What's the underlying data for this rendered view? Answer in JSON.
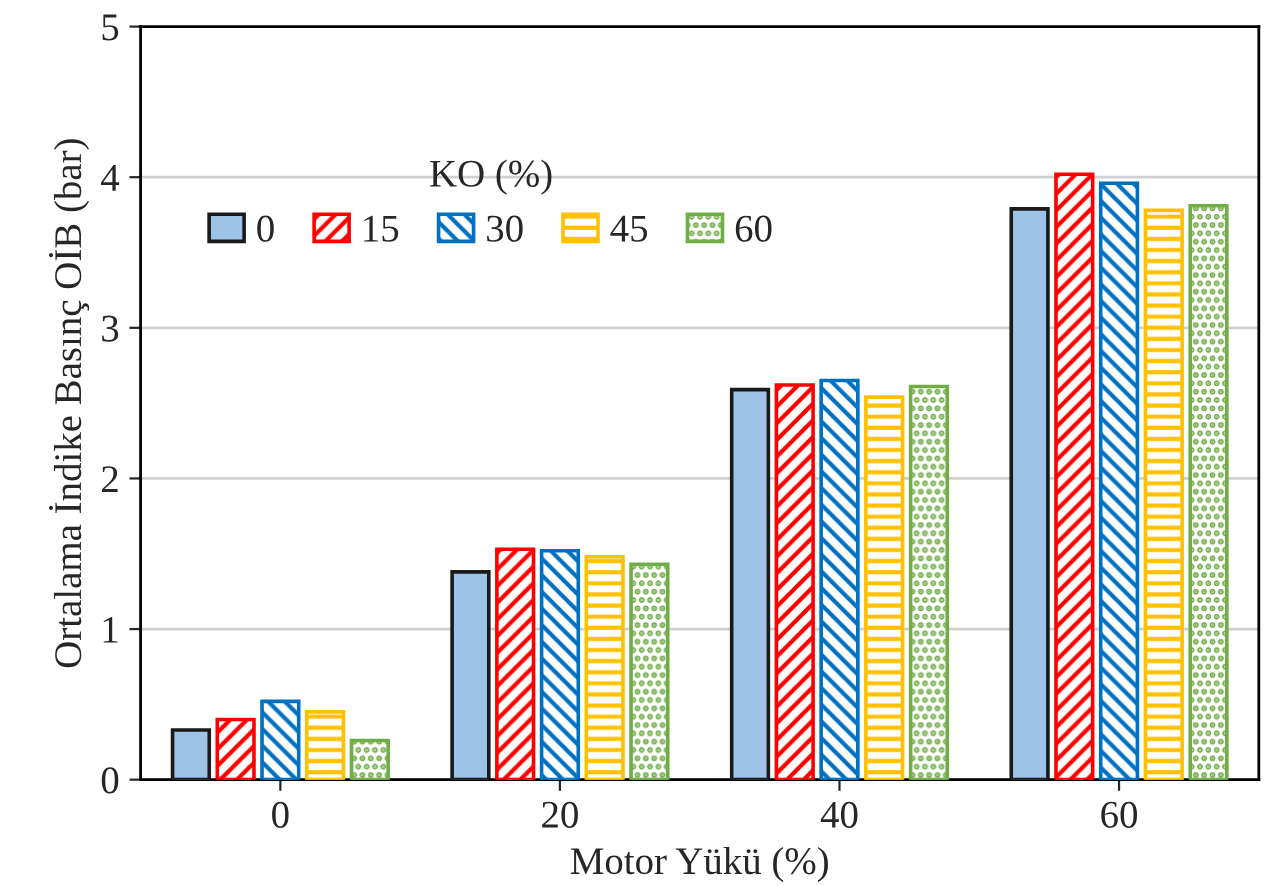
{
  "chart_data": {
    "type": "bar",
    "xlabel": "Motor Yükü (%)",
    "ylabel": "Ortalama İndike Basınç OİB (bar)",
    "legend_title": "KO (%)",
    "categories": [
      "0",
      "20",
      "40",
      "60"
    ],
    "series": [
      {
        "name": "0",
        "color": "#9dc3e6",
        "values": [
          0.33,
          1.38,
          2.59,
          3.79
        ]
      },
      {
        "name": "15",
        "color": "#ff0000",
        "values": [
          0.4,
          1.53,
          2.62,
          4.02
        ]
      },
      {
        "name": "30",
        "color": "#0070c0",
        "values": [
          0.52,
          1.52,
          2.65,
          3.96
        ]
      },
      {
        "name": "45",
        "color": "#ffc000",
        "values": [
          0.45,
          1.48,
          2.54,
          3.78
        ]
      },
      {
        "name": "60",
        "color": "#70ad47",
        "values": [
          0.26,
          1.43,
          2.61,
          3.81
        ]
      }
    ],
    "ylim": [
      0,
      5
    ],
    "yticks": [
      0,
      1,
      2,
      3,
      4,
      5
    ],
    "grid": "y",
    "legend": "top left"
  }
}
